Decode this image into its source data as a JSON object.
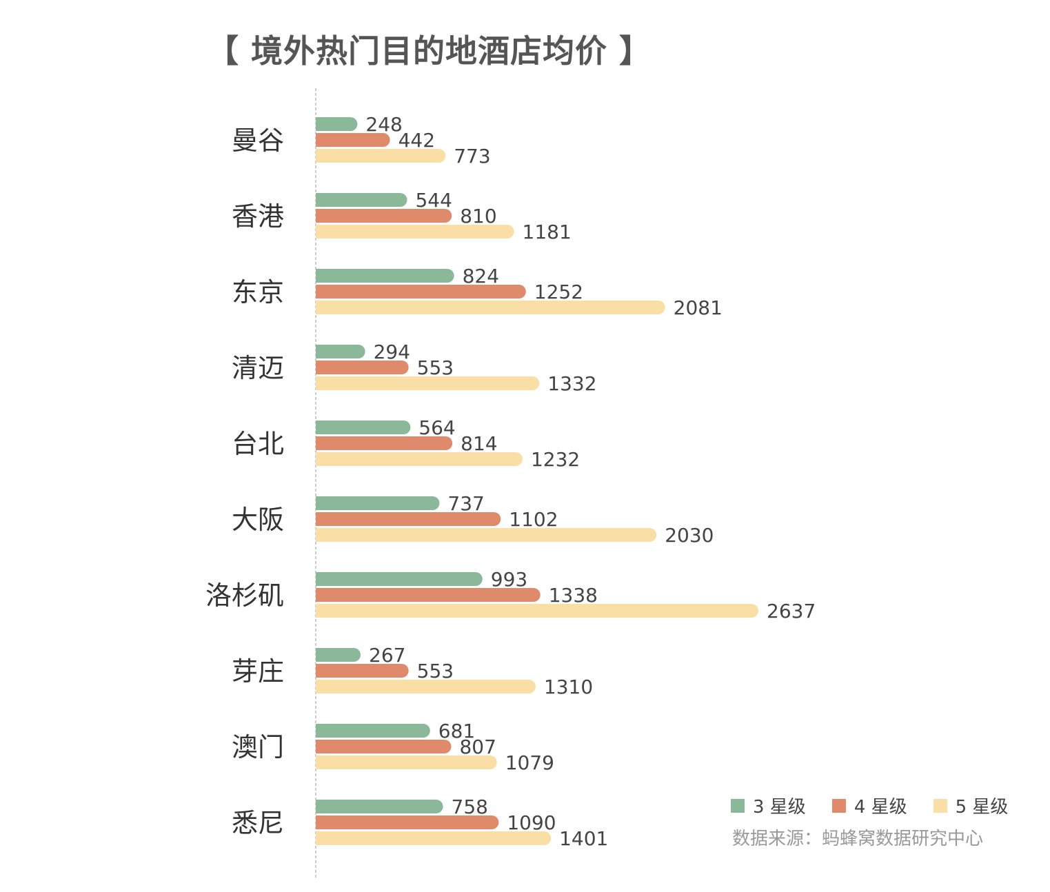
{
  "chart_data": {
    "type": "bar",
    "orientation": "horizontal",
    "title": "【 境外热门目的地酒店均价 】",
    "categories": [
      "曼谷",
      "香港",
      "东京",
      "清迈",
      "台北",
      "大阪",
      "洛杉矶",
      "芽庄",
      "澳门",
      "悉尼"
    ],
    "series": [
      {
        "name": "3 星级",
        "color": "#8ab898",
        "values": [
          248,
          544,
          824,
          294,
          564,
          737,
          993,
          267,
          681,
          758
        ]
      },
      {
        "name": "4 星级",
        "color": "#e08a6c",
        "values": [
          442,
          810,
          1252,
          553,
          814,
          1102,
          1338,
          553,
          807,
          1090
        ]
      },
      {
        "name": "5 星级",
        "color": "#f9dfa6",
        "values": [
          773,
          1181,
          2081,
          1332,
          1232,
          2030,
          2637,
          1310,
          1079,
          1401
        ]
      }
    ],
    "xlim": [
      0,
      2700
    ],
    "grid": false,
    "legend_position": "bottom-right",
    "source": "数据来源：蚂蜂窝数据研究中心"
  }
}
